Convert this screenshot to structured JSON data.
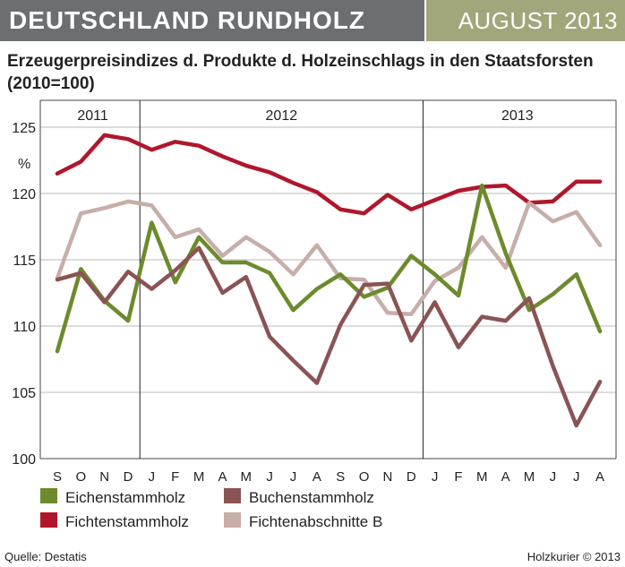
{
  "header": {
    "title": "DEUTSCHLAND RUNDHOLZ",
    "issue": "AUGUST 2013"
  },
  "footer": {
    "source": "Quelle: Destatis",
    "credit": "Holzkurier © 2013"
  },
  "colors": {
    "header_gray": "#6d6e70",
    "header_olive": "#a3a67a"
  },
  "chart_data": {
    "type": "line",
    "title": "Erzeugerpreisindizes d. Produkte d. Holzeinschlags in den Staatsforsten (2010=100)",
    "ylabel": "%",
    "ylim": [
      100,
      125
    ],
    "yticks": [
      100,
      105,
      110,
      115,
      120,
      125
    ],
    "categories": [
      "S",
      "O",
      "N",
      "D",
      "J",
      "F",
      "M",
      "A",
      "M",
      "J",
      "J",
      "A",
      "S",
      "O",
      "N",
      "D",
      "J",
      "F",
      "M",
      "A",
      "M",
      "J",
      "J",
      "A"
    ],
    "years": [
      {
        "label": "2011",
        "start": 0,
        "end": 3
      },
      {
        "label": "2012",
        "start": 4,
        "end": 15
      },
      {
        "label": "2013",
        "start": 16,
        "end": 23
      }
    ],
    "series": [
      {
        "name": "Fichtenstammholz",
        "color": "#b0172c",
        "values": [
          121.5,
          122.4,
          124.4,
          124.1,
          123.3,
          123.9,
          123.6,
          122.8,
          122.1,
          121.6,
          120.8,
          120.1,
          118.8,
          118.5,
          119.9,
          118.8,
          119.5,
          120.2,
          120.5,
          120.6,
          119.3,
          119.4,
          120.9,
          120.9
        ]
      },
      {
        "name": "Fichtenabschnitte B",
        "color": "#c7aea9",
        "values": [
          113.6,
          118.5,
          118.9,
          119.4,
          119.1,
          116.7,
          117.3,
          115.3,
          116.7,
          115.6,
          113.9,
          116.1,
          113.6,
          113.5,
          111.0,
          110.9,
          113.4,
          114.4,
          116.7,
          114.4,
          119.3,
          117.9,
          118.6,
          116.1
        ]
      },
      {
        "name": "Eichenstammholz",
        "color": "#6c8b2c",
        "values": [
          108.1,
          114.3,
          111.9,
          110.4,
          117.8,
          113.3,
          116.7,
          114.8,
          114.8,
          114.0,
          111.2,
          112.8,
          113.9,
          112.2,
          112.9,
          115.3,
          113.9,
          112.3,
          120.6,
          115.5,
          111.2,
          112.4,
          113.9,
          109.6
        ]
      },
      {
        "name": "Buchenstammholz",
        "color": "#8a5454",
        "values": [
          113.5,
          114.0,
          111.8,
          114.1,
          112.8,
          114.2,
          115.9,
          112.5,
          113.7,
          109.2,
          107.4,
          105.7,
          110.1,
          113.1,
          113.2,
          108.9,
          111.8,
          108.4,
          110.7,
          110.4,
          112.1,
          107.0,
          102.5,
          105.8
        ]
      }
    ],
    "legend": [
      "Eichenstammholz",
      "Buchenstammholz",
      "Fichtenstammholz",
      "Fichtenabschnitte B"
    ],
    "legend_position": "bottom"
  }
}
